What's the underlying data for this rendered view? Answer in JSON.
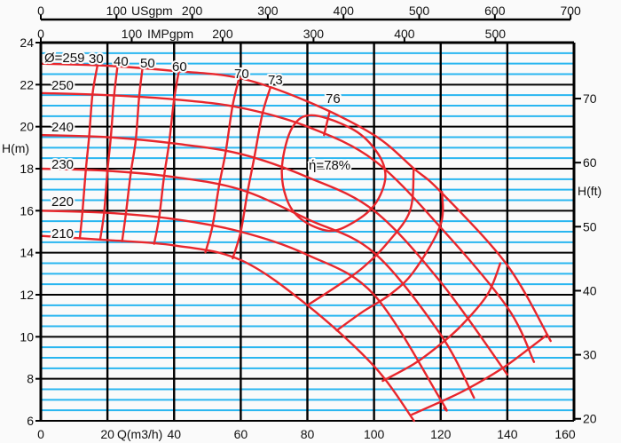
{
  "chart_data": {
    "type": "line",
    "title": "",
    "x_axis": {
      "label": "Q(m3/h)",
      "range": [
        0,
        160
      ],
      "ticks": [
        0,
        20,
        40,
        60,
        80,
        100,
        120,
        140,
        160
      ]
    },
    "y_axis_left": {
      "label": "H(m)",
      "range": [
        6,
        24
      ],
      "ticks": [
        6,
        8,
        10,
        12,
        14,
        16,
        18,
        20,
        22,
        24
      ]
    },
    "y_axis_right": {
      "label": "H(ft)",
      "ticks": [
        20,
        30,
        40,
        50,
        60,
        70
      ]
    },
    "top_axes": [
      {
        "label": "USgpm",
        "factor_m3h": 0.2271,
        "ticks": [
          0,
          100,
          200,
          300,
          400,
          500,
          600,
          700
        ]
      },
      {
        "label": "IMPgpm",
        "factor_m3h": 0.2728,
        "ticks": [
          0,
          100,
          200,
          300,
          400,
          500
        ]
      }
    ],
    "grid": {
      "major_m": 2,
      "minor_m": 0.5,
      "major_color": "#000000",
      "minor_color": "#29b6f0"
    },
    "curve_color": "#e8262c",
    "impeller_curves": [
      {
        "name": "259",
        "label": "Ø=259",
        "points": [
          [
            0,
            23.0
          ],
          [
            20,
            22.9
          ],
          [
            40,
            22.65
          ],
          [
            60,
            22.3
          ],
          [
            80,
            21.2
          ],
          [
            100,
            19.6
          ],
          [
            112,
            18.0
          ],
          [
            120,
            16.9
          ],
          [
            140,
            13.4
          ],
          [
            153,
            9.8
          ]
        ]
      },
      {
        "name": "250",
        "label": "250",
        "points": [
          [
            0,
            21.6
          ],
          [
            20,
            21.5
          ],
          [
            40,
            21.3
          ],
          [
            60,
            20.9
          ],
          [
            80,
            20.0
          ],
          [
            100,
            18.4
          ],
          [
            120,
            15.2
          ],
          [
            140,
            11.4
          ],
          [
            148,
            8.8
          ]
        ]
      },
      {
        "name": "240",
        "label": "240",
        "points": [
          [
            0,
            19.6
          ],
          [
            20,
            19.5
          ],
          [
            40,
            19.2
          ],
          [
            60,
            18.7
          ],
          [
            80,
            17.6
          ],
          [
            100,
            16.0
          ],
          [
            120,
            12.6
          ],
          [
            140,
            8.2
          ]
        ]
      },
      {
        "name": "230",
        "label": "230",
        "points": [
          [
            0,
            18.0
          ],
          [
            20,
            17.9
          ],
          [
            40,
            17.6
          ],
          [
            60,
            17.0
          ],
          [
            80,
            15.6
          ],
          [
            100,
            14.0
          ],
          [
            120,
            10.1
          ],
          [
            130,
            7.1
          ]
        ]
      },
      {
        "name": "220",
        "label": "220",
        "points": [
          [
            0,
            16.0
          ],
          [
            20,
            15.9
          ],
          [
            40,
            15.6
          ],
          [
            60,
            15.0
          ],
          [
            80,
            13.9
          ],
          [
            100,
            12.0
          ],
          [
            120,
            7.0
          ],
          [
            121,
            6.6
          ]
        ]
      },
      {
        "name": "210",
        "label": "210",
        "points": [
          [
            0,
            14.8
          ],
          [
            20,
            14.6
          ],
          [
            40,
            14.35
          ],
          [
            60,
            13.65
          ],
          [
            80,
            11.5
          ],
          [
            100,
            8.6
          ],
          [
            112,
            6.0
          ]
        ]
      }
    ],
    "efficiency_left": [
      {
        "label": "30",
        "q_at_diameters": [
          17,
          15.5,
          14.5,
          13.5,
          12.5,
          11.7
        ]
      },
      {
        "label": "40",
        "q_at_diameters": [
          23,
          22,
          21,
          20,
          19,
          17.8
        ]
      },
      {
        "label": "50",
        "q_at_diameters": [
          30.5,
          29.5,
          28.5,
          27,
          25.5,
          24.4
        ]
      },
      {
        "label": "60",
        "q_at_diameters": [
          41.4,
          40,
          38.5,
          37,
          35.5,
          34
        ]
      },
      {
        "label": "70",
        "q_at_diameters": [
          59.5,
          57.5,
          55.5,
          53.5,
          51.5,
          49.4
        ]
      },
      {
        "label": "73",
        "q_at_diameters": [
          68.8,
          66.5,
          64,
          62,
          60,
          57.6
        ]
      },
      {
        "label": "76",
        "q_at_diameters": [
          86.6,
          85
        ]
      }
    ],
    "efficiency_right": [
      {
        "points": [
          [
            111.9,
            18.0
          ],
          [
            110.8,
            16.0
          ],
          [
            104.2,
            14.5
          ],
          [
            96.7,
            13.3
          ],
          [
            88.8,
            12.4
          ],
          [
            80,
            11.5
          ]
        ]
      },
      {
        "points": [
          [
            120.4,
            16.9
          ],
          [
            119.9,
            15.3
          ],
          [
            111.9,
            13.1
          ],
          [
            104.7,
            12.0
          ],
          [
            96.7,
            11.2
          ],
          [
            88.8,
            10.3
          ]
        ]
      },
      {
        "points": [
          [
            137.9,
            13.5
          ],
          [
            134,
            12.0
          ],
          [
            126,
            10.5
          ],
          [
            118.8,
            9.5
          ],
          [
            111.9,
            8.7
          ],
          [
            102.6,
            7.9
          ]
        ]
      },
      {
        "points": [
          [
            152,
            10.1
          ],
          [
            145.4,
            9.3
          ],
          [
            138.5,
            8.5
          ],
          [
            127.8,
            7.5
          ],
          [
            119.9,
            6.9
          ],
          [
            111.4,
            6.3
          ]
        ]
      }
    ],
    "bep": {
      "label": "ή=78%",
      "points": [
        [
          81.7,
          20.54
        ],
        [
          94.1,
          19.83
        ],
        [
          101.2,
          18.71
        ],
        [
          103.4,
          17.58
        ],
        [
          100.3,
          16.31
        ],
        [
          94.1,
          15.47
        ],
        [
          86.6,
          15.04
        ],
        [
          78.1,
          15.6
        ],
        [
          73.7,
          16.59
        ],
        [
          72.4,
          18.14
        ],
        [
          75.5,
          19.97
        ]
      ]
    }
  }
}
